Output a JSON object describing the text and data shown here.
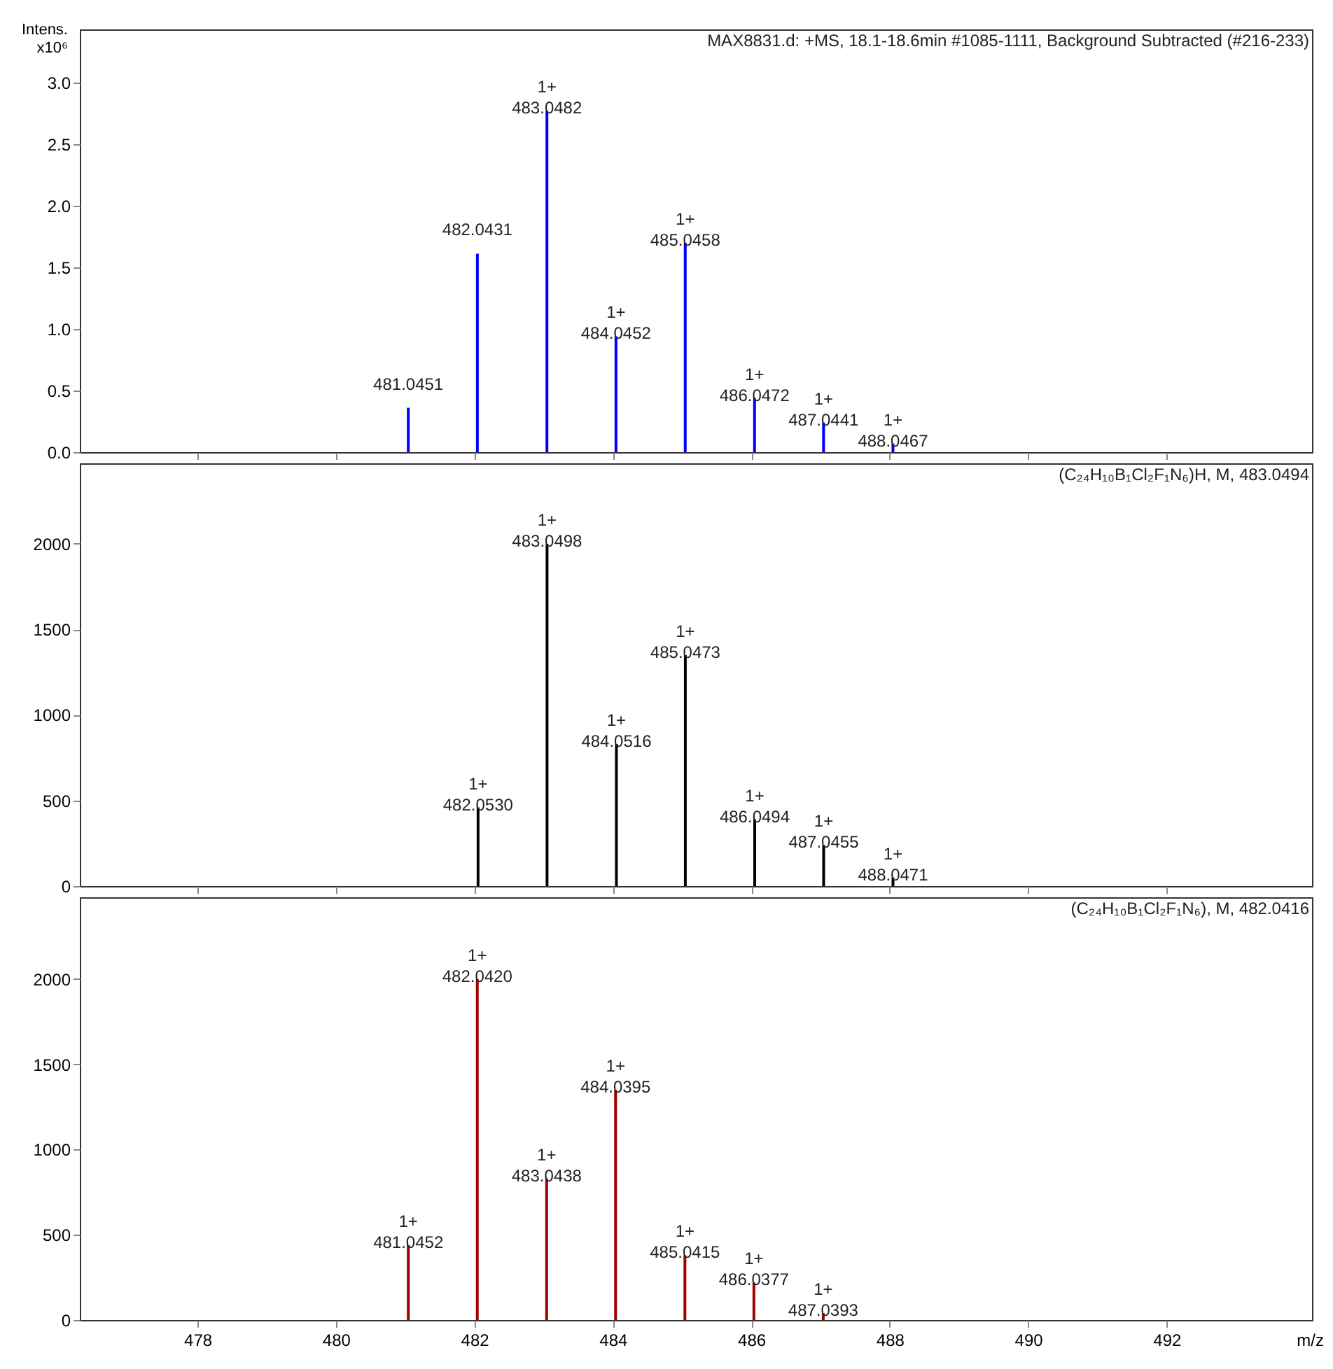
{
  "chart_data": [
    {
      "type": "bar",
      "title": "MAX8831.d: +MS, 18.1-18.6min #1085-1111, Background Subtracted (#216-233)",
      "ylabel": "Intens.\nx10⁶",
      "x": [
        481.0451,
        482.0431,
        483.0482,
        484.0452,
        485.0458,
        486.0472,
        487.0441,
        488.0467
      ],
      "xlim": [
        476.3,
        494.1
      ],
      "xticks": [
        478,
        480,
        482,
        484,
        486,
        488,
        490,
        492
      ],
      "ylim": [
        0,
        3.43
      ],
      "yticks": [
        {
          "value": 0,
          "label": "0.0"
        },
        {
          "value": 0.5,
          "label": "0.5"
        },
        {
          "value": 1,
          "label": "1.0"
        },
        {
          "value": 1.5,
          "label": "1.5"
        },
        {
          "value": 2,
          "label": "2.0"
        },
        {
          "value": 2.5,
          "label": "2.5"
        },
        {
          "value": 3,
          "label": "3.0"
        }
      ],
      "tick_labels": "y",
      "grid": false,
      "series": [
        {
          "color": "#0000ff",
          "values": [
            0.36,
            1.61,
            2.77,
            0.94,
            1.7,
            0.44,
            0.24,
            0.07
          ]
        }
      ],
      "annotations": [
        {
          "text": "481.0451",
          "x": 481.0451,
          "y": 0.36
        },
        {
          "text": "482.0431",
          "x": 482.0431,
          "y": 1.61
        },
        {
          "text": "1+\n483.0482",
          "x": 483.0482,
          "y": 2.77
        },
        {
          "text": "1+\n484.0452",
          "x": 484.0452,
          "y": 0.94
        },
        {
          "text": "1+\n485.0458",
          "x": 485.0458,
          "y": 1.7
        },
        {
          "text": "1+\n486.0472",
          "x": 486.0472,
          "y": 0.44
        },
        {
          "text": "1+\n487.0441",
          "x": 487.0441,
          "y": 0.24
        },
        {
          "text": "1+\n488.0467",
          "x": 488.0467,
          "y": 0.07
        }
      ]
    },
    {
      "type": "bar",
      "title": "(C₂₄H₁₀B₁Cl₂F₁N₆)H, M, 483.0494",
      "x": [
        482.053,
        483.0498,
        484.0516,
        485.0473,
        486.0494,
        487.0455,
        488.0471
      ],
      "xlim": [
        476.3,
        494.1
      ],
      "xticks": [
        478,
        480,
        482,
        484,
        486,
        488,
        490,
        492
      ],
      "ylim": [
        0,
        2470
      ],
      "yticks": [
        0,
        500,
        1000,
        1500,
        2000
      ],
      "tick_labels": "y",
      "grid": false,
      "series": [
        {
          "color": "#000000",
          "values": [
            460,
            2000,
            830,
            1350,
            390,
            240,
            50
          ]
        }
      ],
      "annotations": [
        {
          "text": "1+\n482.0530",
          "x": 482.053,
          "y": 460
        },
        {
          "text": "1+\n483.0498",
          "x": 483.0498,
          "y": 2000
        },
        {
          "text": "1+\n484.0516",
          "x": 484.0516,
          "y": 830
        },
        {
          "text": "1+\n485.0473",
          "x": 485.0473,
          "y": 1350
        },
        {
          "text": "1+\n486.0494",
          "x": 486.0494,
          "y": 390
        },
        {
          "text": "1+\n487.0455",
          "x": 487.0455,
          "y": 240
        },
        {
          "text": "1+\n488.0471",
          "x": 488.0471,
          "y": 50
        }
      ]
    },
    {
      "type": "bar",
      "title": "(C₂₄H₁₀B₁Cl₂F₁N₆), M, 482.0416",
      "xlabel": "m/z",
      "x": [
        481.0452,
        482.042,
        483.0438,
        484.0395,
        485.0415,
        486.0377,
        487.0393
      ],
      "xlim": [
        476.3,
        494.1
      ],
      "xticks": [
        478,
        480,
        482,
        484,
        486,
        488,
        490,
        492
      ],
      "ylim": [
        0,
        2480
      ],
      "yticks": [
        0,
        500,
        1000,
        1500,
        2000
      ],
      "grid": false,
      "series": [
        {
          "color": "#a00000",
          "values": [
            440,
            2000,
            830,
            1350,
            380,
            220,
            40
          ]
        }
      ],
      "annotations": [
        {
          "text": "1+\n481.0452",
          "x": 481.0452,
          "y": 440
        },
        {
          "text": "1+\n482.0420",
          "x": 482.042,
          "y": 2000
        },
        {
          "text": "1+\n483.0438",
          "x": 483.0438,
          "y": 830
        },
        {
          "text": "1+\n484.0395",
          "x": 484.0395,
          "y": 1350
        },
        {
          "text": "1+\n485.0415",
          "x": 485.0415,
          "y": 380
        },
        {
          "text": "1+\n486.0377",
          "x": 486.0377,
          "y": 220
        },
        {
          "text": "1+\n487.0393",
          "x": 487.0393,
          "y": 40
        }
      ]
    }
  ]
}
